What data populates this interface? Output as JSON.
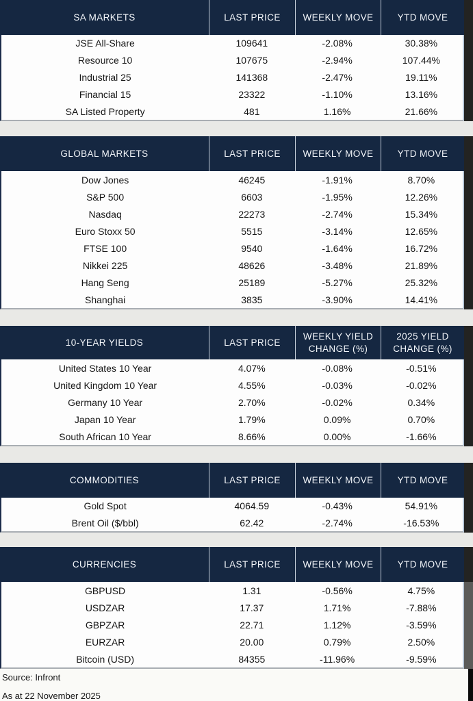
{
  "colors": {
    "header_bg": "#152741",
    "header_text": "#F3F6FA",
    "header_separator": "#C7D0DB",
    "body_bg": "#FDFDFD",
    "body_text": "#161616",
    "gap_bg": "#E9E9E6",
    "right_strip": "#232321",
    "scroll_thumb": "#5B5B59"
  },
  "chart_data": [
    {
      "type": "table",
      "title": "SA MARKETS",
      "columns": [
        "SA MARKETS",
        "LAST PRICE",
        "WEEKLY MOVE",
        "YTD MOVE"
      ],
      "rows": [
        [
          "JSE All-Share",
          "109641",
          "-2.08%",
          "30.38%"
        ],
        [
          "Resource 10",
          "107675",
          "-2.94%",
          "107.44%"
        ],
        [
          "Industrial 25",
          "141368",
          "-2.47%",
          "19.11%"
        ],
        [
          "Financial 15",
          "23322",
          "-1.10%",
          "13.16%"
        ],
        [
          "SA Listed Property",
          "481",
          "1.16%",
          "21.66%"
        ]
      ]
    },
    {
      "type": "table",
      "title": "GLOBAL MARKETS",
      "columns": [
        "GLOBAL MARKETS",
        "LAST PRICE",
        "WEEKLY MOVE",
        "YTD MOVE"
      ],
      "rows": [
        [
          "Dow Jones",
          "46245",
          "-1.91%",
          "8.70%"
        ],
        [
          "S&P 500",
          "6603",
          "-1.95%",
          "12.26%"
        ],
        [
          "Nasdaq",
          "22273",
          "-2.74%",
          "15.34%"
        ],
        [
          "Euro Stoxx 50",
          "5515",
          "-3.14%",
          "12.65%"
        ],
        [
          "FTSE 100",
          "9540",
          "-1.64%",
          "16.72%"
        ],
        [
          "Nikkei 225",
          "48626",
          "-3.48%",
          "21.89%"
        ],
        [
          "Hang Seng",
          "25189",
          "-5.27%",
          "25.32%"
        ],
        [
          "Shanghai",
          "3835",
          "-3.90%",
          "14.41%"
        ]
      ]
    },
    {
      "type": "table",
      "title": "10-YEAR YIELDS",
      "columns": [
        "10-YEAR YIELDS",
        "LAST PRICE",
        "WEEKLY YIELD CHANGE (%)",
        "2025 YIELD CHANGE (%)"
      ],
      "rows": [
        [
          "United States 10 Year",
          "4.07%",
          "-0.08%",
          "-0.51%"
        ],
        [
          "United Kingdom 10 Year",
          "4.55%",
          "-0.03%",
          "-0.02%"
        ],
        [
          "Germany 10 Year",
          "2.70%",
          "-0.02%",
          "0.34%"
        ],
        [
          "Japan 10 Year",
          "1.79%",
          "0.09%",
          "0.70%"
        ],
        [
          "South African 10 Year",
          "8.66%",
          "0.00%",
          "-1.66%"
        ]
      ]
    },
    {
      "type": "table",
      "title": "COMMODITIES",
      "columns": [
        "COMMODITIES",
        "LAST PRICE",
        "WEEKLY MOVE",
        "YTD MOVE"
      ],
      "rows": [
        [
          "Gold Spot",
          "4064.59",
          "-0.43%",
          "54.91%"
        ],
        [
          "Brent Oil ($/bbl)",
          "62.42",
          "-2.74%",
          "-16.53%"
        ]
      ]
    },
    {
      "type": "table",
      "title": "CURRENCIES",
      "columns": [
        "CURRENCIES",
        "LAST PRICE",
        "WEEKLY MOVE",
        "YTD MOVE"
      ],
      "rows": [
        [
          "GBPUSD",
          "1.31",
          "-0.56%",
          "4.75%"
        ],
        [
          "USDZAR",
          "17.37",
          "1.71%",
          "-7.88%"
        ],
        [
          "GBPZAR",
          "22.71",
          "1.12%",
          "-3.59%"
        ],
        [
          "EURZAR",
          "20.00",
          "0.79%",
          "2.50%"
        ],
        [
          "Bitcoin (USD)",
          "84355",
          "-11.96%",
          "-9.59%"
        ]
      ]
    }
  ],
  "footer": {
    "source": "Source: Infront",
    "as_at": "As at 22 November 2025"
  }
}
